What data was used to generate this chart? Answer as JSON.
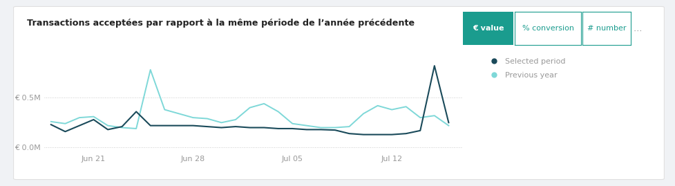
{
  "title": "Transactions acceptées par rapport à la même période de l’année précédente",
  "btn_active": "€ value",
  "btn_inactive1": "% conversion",
  "btn_inactive2": "# number",
  "btn_more": "…",
  "x_labels": [
    "Jun 21",
    "Jun 28",
    "Jul 05",
    "Jul 12"
  ],
  "ytick_labels": [
    "€ 0.0M",
    "€ 0.5M"
  ],
  "ylim": [
    -0.05,
    0.92
  ],
  "xlim": [
    -0.5,
    29
  ],
  "selected_color": "#1a4a5a",
  "previous_color": "#7ed8d8",
  "background_color": "#ffffff",
  "card_bg": "#f7f8fa",
  "legend_selected": "Selected period",
  "legend_previous": "Previous year",
  "selected_x": [
    0,
    1,
    2,
    3,
    4,
    5,
    6,
    7,
    8,
    9,
    10,
    11,
    12,
    13,
    14,
    15,
    16,
    17,
    18,
    19,
    20,
    21,
    22,
    23,
    24,
    25,
    26,
    27,
    28
  ],
  "selected_y": [
    0.23,
    0.16,
    0.22,
    0.28,
    0.18,
    0.21,
    0.36,
    0.22,
    0.22,
    0.22,
    0.22,
    0.21,
    0.2,
    0.21,
    0.2,
    0.2,
    0.19,
    0.19,
    0.18,
    0.18,
    0.175,
    0.14,
    0.13,
    0.13,
    0.13,
    0.14,
    0.17,
    0.82,
    0.25
  ],
  "previous_x": [
    0,
    1,
    2,
    3,
    4,
    5,
    6,
    7,
    8,
    9,
    10,
    11,
    12,
    13,
    14,
    15,
    16,
    17,
    18,
    19,
    20,
    21,
    22,
    23,
    24,
    25,
    26,
    27,
    28
  ],
  "previous_y": [
    0.26,
    0.24,
    0.3,
    0.31,
    0.22,
    0.2,
    0.19,
    0.78,
    0.38,
    0.34,
    0.3,
    0.29,
    0.25,
    0.28,
    0.4,
    0.44,
    0.36,
    0.24,
    0.22,
    0.2,
    0.2,
    0.21,
    0.34,
    0.42,
    0.38,
    0.41,
    0.3,
    0.32,
    0.22
  ],
  "grid_color": "#cccccc",
  "title_color": "#222222",
  "axis_label_color": "#999999",
  "btn_active_bg": "#1a9c8e",
  "btn_active_fg": "#ffffff",
  "btn_inactive_fg": "#1a9c8e",
  "btn_inactive_border": "#1a9c8e",
  "outer_bg": "#f0f2f5",
  "card_border": "#e0e0e0"
}
